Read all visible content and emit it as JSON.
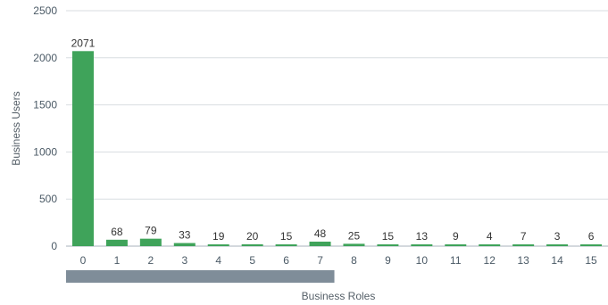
{
  "chart_data": {
    "type": "bar",
    "categories": [
      "0",
      "1",
      "2",
      "3",
      "4",
      "5",
      "6",
      "7",
      "8",
      "9",
      "10",
      "11",
      "12",
      "13",
      "14",
      "15"
    ],
    "values": [
      2071,
      68,
      79,
      33,
      19,
      20,
      15,
      48,
      25,
      15,
      13,
      9,
      4,
      7,
      3,
      6
    ],
    "title": "",
    "xlabel": "Business Roles",
    "ylabel": "Business Users",
    "ylim": [
      0,
      2500
    ],
    "yticks": [
      0,
      500,
      1000,
      1500,
      2000,
      2500
    ],
    "grid": true,
    "data_labels": true,
    "bar_color": "#3fa35a",
    "scrollbar": {
      "visible_range": [
        0,
        7
      ],
      "color": "#7f8d99"
    }
  }
}
